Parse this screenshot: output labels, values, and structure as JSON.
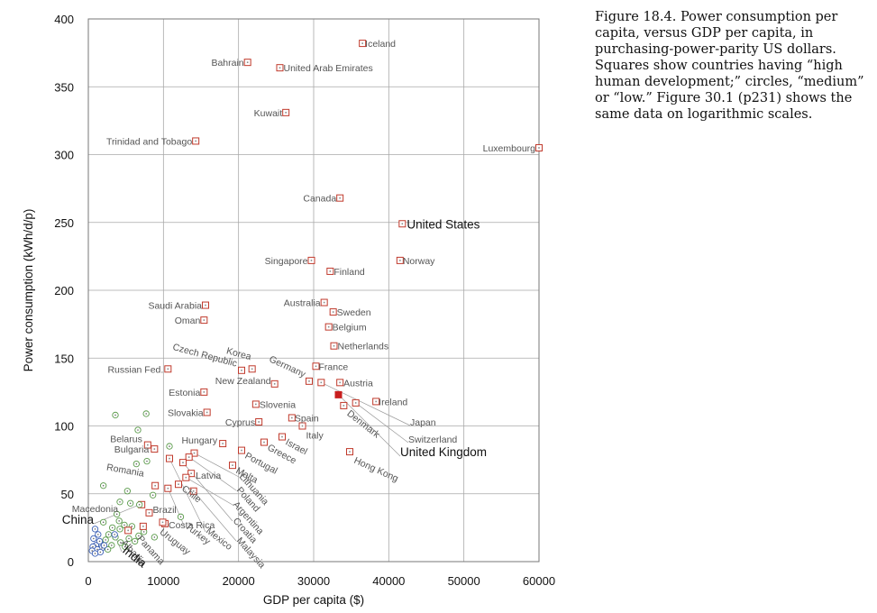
{
  "caption": "Figure 18.4. Power consumption per capita, versus GDP per capita, in purchasing-power-parity US dollars. Squares show countries having “high human development;” circles, “medium” or “low.” Figure 30.1 (p231) shows the same data on logarithmic scales.",
  "chart_data": {
    "type": "scatter",
    "title": "",
    "xlabel": "GDP per capita ($)",
    "ylabel": "Power consumption (kWh/d/p)",
    "xlim": [
      0,
      60000
    ],
    "ylim": [
      0,
      400
    ],
    "xticks": [
      0,
      10000,
      20000,
      30000,
      40000,
      50000,
      60000
    ],
    "yticks": [
      0,
      50,
      100,
      150,
      200,
      250,
      300,
      350,
      400
    ],
    "grid": true,
    "legend": "none",
    "labeled_points": [
      {
        "name": "Iceland",
        "x": 36500,
        "y": 382,
        "group": "high"
      },
      {
        "name": "Bahrain",
        "x": 21200,
        "y": 368,
        "group": "high"
      },
      {
        "name": "United Arab Emirates",
        "x": 25500,
        "y": 364,
        "group": "high"
      },
      {
        "name": "Kuwait",
        "x": 26300,
        "y": 331,
        "group": "high"
      },
      {
        "name": "Trinidad and Tobago",
        "x": 14300,
        "y": 310,
        "group": "high"
      },
      {
        "name": "Luxembourg",
        "x": 60000,
        "y": 305,
        "group": "high"
      },
      {
        "name": "Canada",
        "x": 33500,
        "y": 268,
        "group": "high"
      },
      {
        "name": "United States",
        "x": 41800,
        "y": 249,
        "group": "high"
      },
      {
        "name": "Singapore",
        "x": 29700,
        "y": 222,
        "group": "high"
      },
      {
        "name": "Norway",
        "x": 41500,
        "y": 222,
        "group": "high"
      },
      {
        "name": "Finland",
        "x": 32200,
        "y": 214,
        "group": "high"
      },
      {
        "name": "Australia",
        "x": 31400,
        "y": 191,
        "group": "high"
      },
      {
        "name": "Saudi Arabia",
        "x": 15600,
        "y": 189,
        "group": "high"
      },
      {
        "name": "Sweden",
        "x": 32600,
        "y": 184,
        "group": "high"
      },
      {
        "name": "Oman",
        "x": 15400,
        "y": 178,
        "group": "high"
      },
      {
        "name": "Belgium",
        "x": 32000,
        "y": 173,
        "group": "high"
      },
      {
        "name": "Netherlands",
        "x": 32700,
        "y": 159,
        "group": "high"
      },
      {
        "name": "Russian Fed.",
        "x": 10600,
        "y": 142,
        "group": "high"
      },
      {
        "name": "Czech Republic",
        "x": 20400,
        "y": 141,
        "group": "high"
      },
      {
        "name": "Korea",
        "x": 21800,
        "y": 142,
        "group": "high"
      },
      {
        "name": "France",
        "x": 30300,
        "y": 144,
        "group": "high"
      },
      {
        "name": "Germany",
        "x": 29400,
        "y": 133,
        "group": "high"
      },
      {
        "name": "New Zealand",
        "x": 24800,
        "y": 131,
        "group": "high"
      },
      {
        "name": "Austria",
        "x": 33500,
        "y": 132,
        "group": "high"
      },
      {
        "name": "Estonia",
        "x": 15400,
        "y": 125,
        "group": "high"
      },
      {
        "name": "Ireland",
        "x": 38300,
        "y": 118,
        "group": "high"
      },
      {
        "name": "Japan",
        "x": 31000,
        "y": 132,
        "group": "high"
      },
      {
        "name": "Denmark",
        "x": 34000,
        "y": 115,
        "group": "high"
      },
      {
        "name": "Slovenia",
        "x": 22300,
        "y": 116,
        "group": "high"
      },
      {
        "name": "Switzerland",
        "x": 35600,
        "y": 117,
        "group": "high"
      },
      {
        "name": "Slovakia",
        "x": 15800,
        "y": 110,
        "group": "high"
      },
      {
        "name": "Spain",
        "x": 27100,
        "y": 106,
        "group": "high"
      },
      {
        "name": "Cyprus",
        "x": 22700,
        "y": 103,
        "group": "high"
      },
      {
        "name": "Italy",
        "x": 28500,
        "y": 100,
        "group": "high"
      },
      {
        "name": "Israel",
        "x": 25800,
        "y": 92,
        "group": "high"
      },
      {
        "name": "Greece",
        "x": 23400,
        "y": 88,
        "group": "high"
      },
      {
        "name": "Hong Kong",
        "x": 34800,
        "y": 81,
        "group": "high"
      },
      {
        "name": "Portugal",
        "x": 20400,
        "y": 82,
        "group": "high"
      },
      {
        "name": "Hungary",
        "x": 17900,
        "y": 87,
        "group": "high"
      },
      {
        "name": "Belarus",
        "x": 7900,
        "y": 86,
        "group": "high"
      },
      {
        "name": "Bulgaria",
        "x": 8800,
        "y": 83,
        "group": "high"
      },
      {
        "name": "Malta",
        "x": 19200,
        "y": 71,
        "group": "high"
      },
      {
        "name": "Latvia",
        "x": 13700,
        "y": 65,
        "group": "high"
      },
      {
        "name": "Lithuania",
        "x": 14100,
        "y": 80,
        "group": "high"
      },
      {
        "name": "Poland",
        "x": 13400,
        "y": 77,
        "group": "high"
      },
      {
        "name": "Chile",
        "x": 12000,
        "y": 57,
        "group": "high"
      },
      {
        "name": "Argentina",
        "x": 13000,
        "y": 62,
        "group": "high"
      },
      {
        "name": "Croatia",
        "x": 12600,
        "y": 73,
        "group": "high"
      },
      {
        "name": "Romania",
        "x": 8900,
        "y": 56,
        "group": "high"
      },
      {
        "name": "Macedonia",
        "x": 7100,
        "y": 42,
        "group": "high"
      },
      {
        "name": "Brazil",
        "x": 8100,
        "y": 36,
        "group": "high"
      },
      {
        "name": "Costa Rica",
        "x": 10200,
        "y": 28,
        "group": "high"
      },
      {
        "name": "Uruguay",
        "x": 9900,
        "y": 29,
        "group": "high"
      },
      {
        "name": "Panama",
        "x": 7300,
        "y": 26,
        "group": "high"
      },
      {
        "name": "Albania",
        "x": 5300,
        "y": 23,
        "group": "high"
      },
      {
        "name": "Turkey",
        "x": 10600,
        "y": 54,
        "group": "high"
      },
      {
        "name": "Mexico",
        "x": 10800,
        "y": 76,
        "group": "high"
      },
      {
        "name": "Malaysia",
        "x": 14000,
        "y": 52,
        "group": "high"
      },
      {
        "name": "United Kingdom",
        "x": 33300,
        "y": 123,
        "group": "highlight"
      },
      {
        "name": "China",
        "x": 6800,
        "y": 42,
        "group": "medium"
      },
      {
        "name": "India",
        "x": 3500,
        "y": 20,
        "group": "low"
      }
    ],
    "unlabeled_points": [
      {
        "x": 3600,
        "y": 108,
        "group": "medium"
      },
      {
        "x": 7700,
        "y": 109,
        "group": "medium"
      },
      {
        "x": 6600,
        "y": 97,
        "group": "medium"
      },
      {
        "x": 10800,
        "y": 85,
        "group": "medium"
      },
      {
        "x": 7800,
        "y": 74,
        "group": "medium"
      },
      {
        "x": 6400,
        "y": 72,
        "group": "medium"
      },
      {
        "x": 2000,
        "y": 56,
        "group": "medium"
      },
      {
        "x": 5200,
        "y": 52,
        "group": "medium"
      },
      {
        "x": 4200,
        "y": 44,
        "group": "medium"
      },
      {
        "x": 5600,
        "y": 43,
        "group": "medium"
      },
      {
        "x": 8600,
        "y": 49,
        "group": "medium"
      },
      {
        "x": 12300,
        "y": 33,
        "group": "medium"
      },
      {
        "x": 4100,
        "y": 30,
        "group": "medium"
      },
      {
        "x": 2000,
        "y": 29,
        "group": "medium"
      },
      {
        "x": 4800,
        "y": 27,
        "group": "medium"
      },
      {
        "x": 3200,
        "y": 25,
        "group": "medium"
      },
      {
        "x": 4200,
        "y": 24,
        "group": "medium"
      },
      {
        "x": 5800,
        "y": 26,
        "group": "medium"
      },
      {
        "x": 2700,
        "y": 20,
        "group": "medium"
      },
      {
        "x": 3600,
        "y": 18,
        "group": "medium"
      },
      {
        "x": 5400,
        "y": 17,
        "group": "medium"
      },
      {
        "x": 6700,
        "y": 19,
        "group": "medium"
      },
      {
        "x": 2300,
        "y": 16,
        "group": "medium"
      },
      {
        "x": 4300,
        "y": 14,
        "group": "medium"
      },
      {
        "x": 1700,
        "y": 13,
        "group": "medium"
      },
      {
        "x": 3100,
        "y": 12,
        "group": "medium"
      },
      {
        "x": 4900,
        "y": 11,
        "group": "medium"
      },
      {
        "x": 2600,
        "y": 9,
        "group": "medium"
      },
      {
        "x": 6200,
        "y": 15,
        "group": "medium"
      },
      {
        "x": 7400,
        "y": 22,
        "group": "medium"
      },
      {
        "x": 3800,
        "y": 35,
        "group": "medium"
      },
      {
        "x": 8800,
        "y": 18,
        "group": "medium"
      },
      {
        "x": 900,
        "y": 24,
        "group": "low"
      },
      {
        "x": 1300,
        "y": 20,
        "group": "low"
      },
      {
        "x": 700,
        "y": 17,
        "group": "low"
      },
      {
        "x": 1500,
        "y": 15,
        "group": "low"
      },
      {
        "x": 1000,
        "y": 12,
        "group": "low"
      },
      {
        "x": 600,
        "y": 11,
        "group": "low"
      },
      {
        "x": 1800,
        "y": 10,
        "group": "low"
      },
      {
        "x": 1200,
        "y": 9,
        "group": "low"
      },
      {
        "x": 500,
        "y": 8,
        "group": "low"
      },
      {
        "x": 1600,
        "y": 7,
        "group": "low"
      },
      {
        "x": 900,
        "y": 6,
        "group": "low"
      },
      {
        "x": 2100,
        "y": 12,
        "group": "low"
      }
    ]
  }
}
